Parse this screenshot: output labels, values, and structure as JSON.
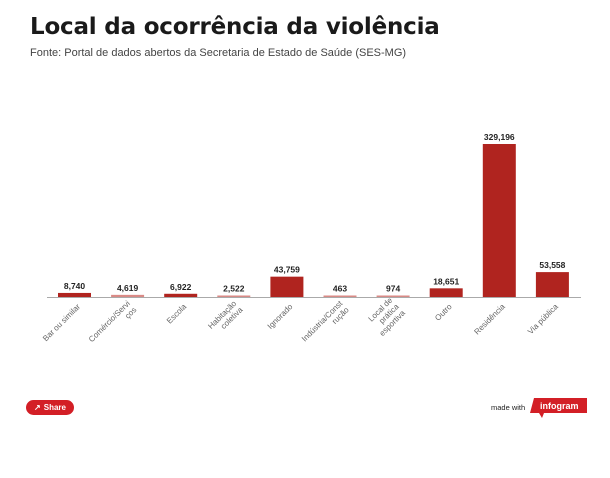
{
  "header": {
    "title": "Local da ocorrência da violência",
    "subtitle": "Fonte: Portal de dados abertos da Secretaria de Estado de Saúde (SES-MG)"
  },
  "chart_data": {
    "type": "bar",
    "title": "Local da ocorrência da violência",
    "subtitle": "Fonte: Portal de dados abertos da Secretaria de Estado de Saúde (SES-MG)",
    "categories": [
      "Bar ou similar",
      "Comércio/Serviços",
      "Escola",
      "Habitação coletiva",
      "Ignorado",
      "Indústria/Construção",
      "Local de prática esportiva",
      "Outro",
      "Residência",
      "Via pública"
    ],
    "category_label_lines": [
      [
        "Bar ou similar"
      ],
      [
        "Comércio/Servi",
        "ços"
      ],
      [
        "Escola"
      ],
      [
        "Habitação",
        "coletiva"
      ],
      [
        "Ignorado"
      ],
      [
        "Indústria/Const",
        "rução"
      ],
      [
        "Local de",
        "prática",
        "esportiva"
      ],
      [
        "Outro"
      ],
      [
        "Residência"
      ],
      [
        "Via pública"
      ]
    ],
    "values": [
      8740,
      4619,
      6922,
      2522,
      43759,
      463,
      974,
      18651,
      329196,
      53558
    ],
    "value_labels": [
      "8,740",
      "4,619",
      "6,922",
      "2,522",
      "43,759",
      "463",
      "974",
      "18,651",
      "329,196",
      "53,558"
    ],
    "xlabel": "",
    "ylabel": "",
    "ylim": [
      0,
      329196
    ],
    "grid": false,
    "legend": "none",
    "bar_color": "#b0241f",
    "bar_color_light": "#d98a86"
  },
  "footer": {
    "share_label": "Share",
    "share_icon": "share-icon",
    "made_with": "made with",
    "brand": "infogram",
    "brand_color": "#d31f26"
  }
}
